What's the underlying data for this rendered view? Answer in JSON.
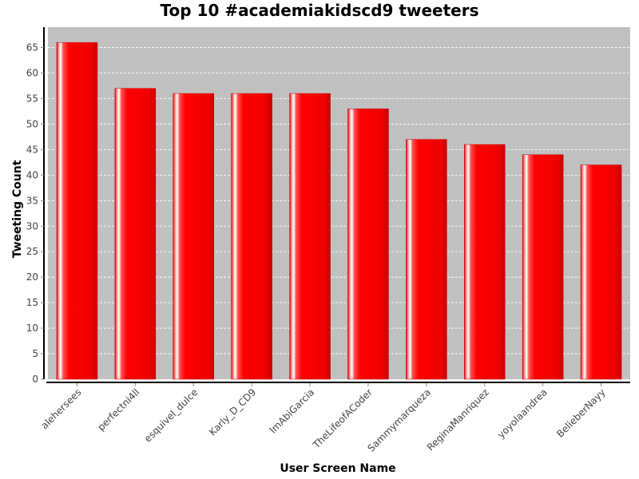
{
  "chart_data": {
    "type": "bar",
    "title": "Top 10 #academiakidscd9 tweeters",
    "xlabel": "User Screen Name",
    "ylabel": "Tweeting Count",
    "categories": [
      "alehersees",
      "perfectni4ll",
      "esquivel_dulce",
      "Karly_D_CD9",
      "ImAbiGarcia",
      "TheLifeofACoder",
      "Sammymarqueza",
      "ReginaManriquez",
      "yoyolaandrea",
      "BelieberNayy"
    ],
    "values": [
      66,
      57,
      56,
      56,
      56,
      53,
      47,
      46,
      44,
      42
    ],
    "ylim": [
      0,
      69
    ],
    "yticks": [
      0,
      5,
      10,
      15,
      20,
      25,
      30,
      35,
      40,
      45,
      50,
      55,
      60,
      65
    ],
    "grid": true,
    "legend": "none",
    "colors": {
      "bar": "#ff0000",
      "bar_dark": "#c80000",
      "plot_background": "#c0c0c0",
      "gridline": "#ffffff"
    }
  }
}
